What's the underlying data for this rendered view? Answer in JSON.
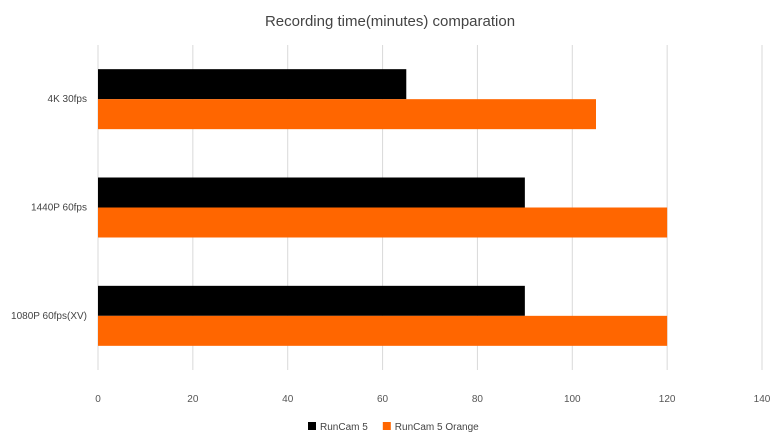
{
  "chart_data": {
    "type": "bar",
    "orientation": "horizontal",
    "title": "Recording time(minutes) comparation",
    "xlabel": "",
    "ylabel": "",
    "categories": [
      "4K 30fps",
      "1440P 60fps",
      "1080P 60fps(XV)"
    ],
    "series": [
      {
        "name": "RunCam 5",
        "color": "#000000",
        "values": [
          65,
          90,
          90
        ]
      },
      {
        "name": "RunCam 5 Orange",
        "color": "#ff6600",
        "values": [
          105,
          120,
          120
        ]
      }
    ],
    "xlim": [
      0,
      140
    ],
    "x_ticks": [
      0,
      20,
      40,
      60,
      80,
      100,
      120,
      140
    ],
    "grid": "vertical",
    "legend_position": "bottom"
  }
}
